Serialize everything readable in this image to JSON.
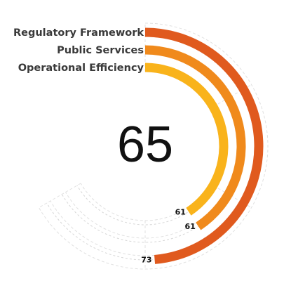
{
  "chart_data": {
    "type": "radial-bar",
    "center_value": "65",
    "value_range": [
      0,
      100
    ],
    "grid": true,
    "series": [
      {
        "name": "Regulatory Framework",
        "value": 73,
        "color": "#e05a1e"
      },
      {
        "name": "Public Services",
        "value": 61,
        "color": "#f08a1c"
      },
      {
        "name": "Operational Efficiency",
        "value": 61,
        "color": "#f9b31b"
      }
    ]
  },
  "colors": {
    "track": "#d6d6d6",
    "grid": "#e0e0e0"
  }
}
